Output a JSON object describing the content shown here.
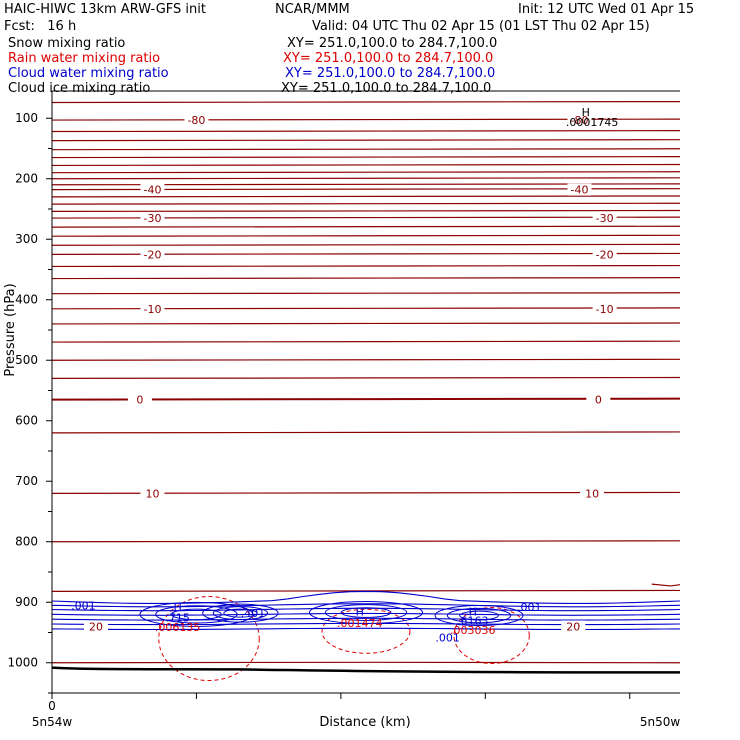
{
  "header": {
    "left_title": "HAIC-HIWC 13km ARW-GFS init",
    "center_title": "NCAR/MMM",
    "init": "Init: 12 UTC Wed 01 Apr 15",
    "fcst": "Fcst:   16 h",
    "valid": "Valid: 04 UTC Thu 02 Apr 15 (01 LST Thu 02 Apr 15)"
  },
  "fields": [
    {
      "name": "Snow mixing ratio",
      "xy": "XY= 251.0,100.0 to 284.7,100.0",
      "color": "#000000"
    },
    {
      "name": "Rain water mixing ratio",
      "xy": "XY= 251.0,100.0 to 284.7,100.0",
      "color": "#dd0000"
    },
    {
      "name": "Cloud water mixing ratio",
      "xy": "XY= 251.0,100.0 to 284.7,100.0",
      "color": "#0000cc"
    },
    {
      "name": "Cloud ice mixing ratio",
      "xy": "XY= 251.0,100.0 to 284.7,100.0",
      "color": "#000000"
    }
  ],
  "chart_data": {
    "type": "line",
    "xlabel": "Distance (km)",
    "ylabel": "Pressure (hPa)",
    "x_tick_labels": [
      {
        "x": 0,
        "label": "0"
      }
    ],
    "x_end_labels": {
      "left": "5n54w",
      "right": "5n50w"
    },
    "y_ticks": [
      100,
      200,
      300,
      400,
      500,
      600,
      700,
      800,
      900,
      1000
    ],
    "ylim": [
      1050,
      55
    ],
    "temperature_labels": [
      {
        "value": "-80",
        "p": 103,
        "x": 0.23
      },
      {
        "value": "-80",
        "p": 103,
        "x": 0.84
      },
      {
        "value": "-40",
        "p": 218,
        "x": 0.16
      },
      {
        "value": "-40",
        "p": 218,
        "x": 0.84
      },
      {
        "value": "-30",
        "p": 265,
        "x": 0.16
      },
      {
        "value": "-30",
        "p": 265,
        "x": 0.88
      },
      {
        "value": "-20",
        "p": 325,
        "x": 0.16
      },
      {
        "value": "-20",
        "p": 325,
        "x": 0.88
      },
      {
        "value": "-10",
        "p": 415,
        "x": 0.16
      },
      {
        "value": "-10",
        "p": 415,
        "x": 0.88
      },
      {
        "value": "0",
        "p": 565,
        "x": 0.14
      },
      {
        "value": "0",
        "p": 565,
        "x": 0.87
      },
      {
        "value": "10",
        "p": 720,
        "x": 0.16
      },
      {
        "value": "10",
        "p": 720,
        "x": 0.86
      },
      {
        "value": "20",
        "p": 940,
        "x": 0.07
      },
      {
        "value": "20",
        "p": 940,
        "x": 0.83
      }
    ],
    "annotations": [
      {
        "text": "H",
        "p": 90,
        "x": 0.85,
        "color": "#000000"
      },
      {
        "text": ".0001745",
        "p": 106,
        "x": 0.86,
        "color": "#000000"
      },
      {
        "text": ".001",
        "p": 905,
        "x": 0.05,
        "color": "#0000cc"
      },
      {
        "text": "H",
        "p": 908,
        "x": 0.2,
        "color": "#0000cc"
      },
      {
        "text": ".715",
        "p": 925,
        "x": 0.2,
        "color": "#0000cc"
      },
      {
        "text": ".006135",
        "p": 941,
        "x": 0.2,
        "color": "#dd0000"
      },
      {
        "text": ".401",
        "p": 918,
        "x": 0.32,
        "color": "#0000cc"
      },
      {
        "text": "H",
        "p": 915,
        "x": 0.49,
        "color": "#0000cc"
      },
      {
        "text": ".001474",
        "p": 934,
        "x": 0.49,
        "color": "#dd0000"
      },
      {
        "text": ".001",
        "p": 958,
        "x": 0.63,
        "color": "#0000cc"
      },
      {
        "text": "H",
        "p": 915,
        "x": 0.67,
        "color": "#0000cc"
      },
      {
        "text": ".6163",
        "p": 930,
        "x": 0.67,
        "color": "#0000cc"
      },
      {
        "text": ".003036",
        "p": 946,
        "x": 0.67,
        "color": "#dd0000"
      },
      {
        "text": ".001",
        "p": 908,
        "x": 0.76,
        "color": "#0000cc"
      }
    ],
    "colors": {
      "temperature": "#8b0000",
      "cloud_water": "#0000cc",
      "rain": "#dd0000",
      "terrain": "#000000"
    }
  }
}
